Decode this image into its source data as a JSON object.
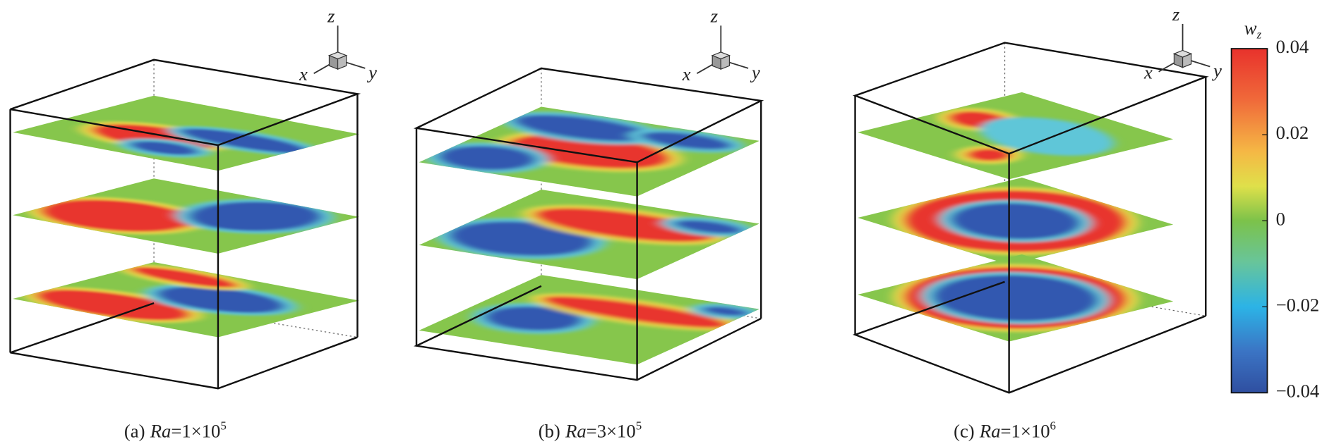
{
  "axis_labels": {
    "x": "x",
    "y": "y",
    "z": "z"
  },
  "panels": [
    {
      "label": "(a)",
      "variable": "Ra",
      "value_text": "=1×10",
      "exponent": "5"
    },
    {
      "label": "(b)",
      "variable": "Ra",
      "value_text": "=3×10",
      "exponent": "5"
    },
    {
      "label": "(c)",
      "variable": "Ra",
      "value_text": "=1×10",
      "exponent": "6"
    }
  ],
  "colorbar": {
    "label": "w",
    "label_subscript": "z",
    "range": [
      -0.04,
      0.04
    ],
    "ticks": [
      {
        "value": -0.04,
        "label": "−0.04"
      },
      {
        "value": -0.02,
        "label": "−0.02"
      },
      0,
      0.02,
      0.04
    ]
  }
}
